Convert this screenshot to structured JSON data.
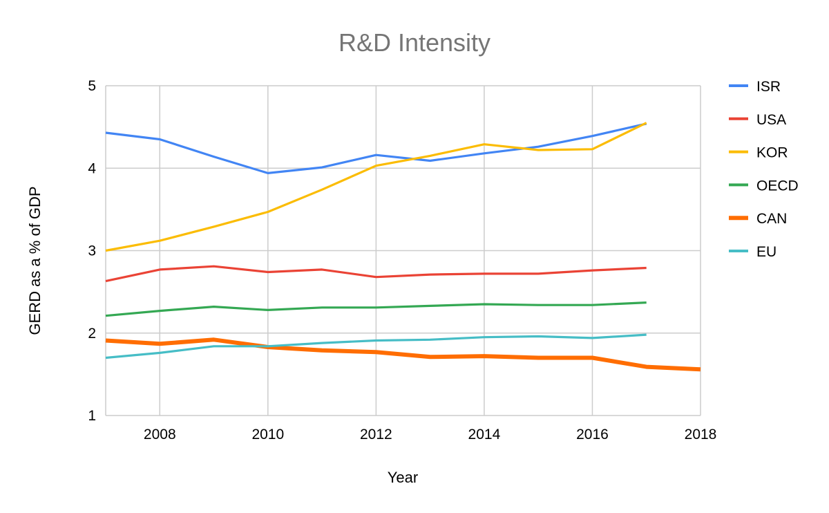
{
  "chart_data": {
    "type": "line",
    "title": "R&D Intensity",
    "xlabel": "Year",
    "ylabel": "GERD as a % of GDP",
    "xlim": [
      2007,
      2018
    ],
    "ylim": [
      1,
      5
    ],
    "x_ticks": [
      "2008",
      "2010",
      "2012",
      "2014",
      "2016",
      "2018"
    ],
    "y_ticks": [
      "1",
      "2",
      "3",
      "4",
      "5"
    ],
    "grid": true,
    "legend_position": "right",
    "x": [
      2007,
      2008,
      2009,
      2010,
      2011,
      2012,
      2013,
      2014,
      2015,
      2016,
      2017,
      2018
    ],
    "series": [
      {
        "name": "ISR",
        "color": "#4285F4",
        "values": [
          4.43,
          4.35,
          4.14,
          3.94,
          4.01,
          4.16,
          4.09,
          4.18,
          4.26,
          4.39,
          4.54,
          null
        ]
      },
      {
        "name": "USA",
        "color": "#EA4335",
        "values": [
          2.63,
          2.77,
          2.81,
          2.74,
          2.77,
          2.68,
          2.71,
          2.72,
          2.72,
          2.76,
          2.79,
          null
        ]
      },
      {
        "name": "KOR",
        "color": "#FBBC04",
        "values": [
          3.0,
          3.12,
          3.29,
          3.47,
          3.74,
          4.03,
          4.15,
          4.29,
          4.22,
          4.23,
          4.55,
          null
        ]
      },
      {
        "name": "OECD",
        "color": "#34A853",
        "values": [
          2.21,
          2.27,
          2.32,
          2.28,
          2.31,
          2.31,
          2.33,
          2.35,
          2.34,
          2.34,
          2.37,
          null
        ]
      },
      {
        "name": "CAN",
        "color": "#FF6D01",
        "values": [
          1.91,
          1.87,
          1.92,
          1.83,
          1.79,
          1.77,
          1.71,
          1.72,
          1.7,
          1.7,
          1.59,
          1.56
        ]
      },
      {
        "name": "EU",
        "color": "#46BDC6",
        "values": [
          1.7,
          1.76,
          1.84,
          1.84,
          1.88,
          1.91,
          1.92,
          1.95,
          1.96,
          1.94,
          1.98,
          null
        ]
      }
    ]
  }
}
